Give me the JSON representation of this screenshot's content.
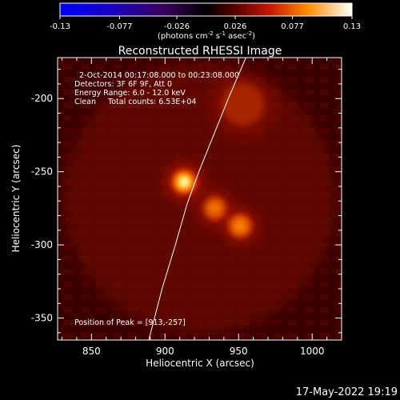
{
  "colorbar": {
    "tick_labels": [
      "-0.13",
      "-0.077",
      "-0.026",
      "0.026",
      "0.077",
      "0.13"
    ],
    "tick_values": [
      -0.13,
      -0.077,
      -0.026,
      0.026,
      0.077,
      0.13
    ],
    "range": [
      -0.13,
      0.13
    ],
    "unit_label_main": "(photons cm",
    "unit_sup1": "-2",
    "unit_mid1": " s",
    "unit_sup2": "-1",
    "unit_mid2": " asec",
    "unit_sup3": "-2",
    "unit_end": ")"
  },
  "chart_data": {
    "type": "heatmap",
    "title": "Reconstructed RHESSI Image",
    "xlabel": "Heliocentric X (arcsec)",
    "ylabel": "Heliocentric Y (arcsec)",
    "xlim": [
      827,
      1020
    ],
    "ylim": [
      -365,
      -172
    ],
    "xticks": [
      850,
      900,
      950,
      1000
    ],
    "yticks": [
      -200,
      -250,
      -300,
      -350
    ],
    "xtick_labels": [
      "850",
      "900",
      "950",
      "1000"
    ],
    "ytick_labels": [
      "-200",
      "-250",
      "-300",
      "-350"
    ],
    "colormap": "hot",
    "sources": [
      {
        "x": 913,
        "y": -257,
        "intensity": 1.0,
        "sigma": 5
      },
      {
        "x": 934,
        "y": -275,
        "intensity": 0.55,
        "sigma": 5
      },
      {
        "x": 951,
        "y": -287,
        "intensity": 0.62,
        "sigma": 5
      },
      {
        "x": 953,
        "y": -204,
        "intensity": 0.28,
        "sigma": 9
      }
    ],
    "limb_curve": [
      [
        889,
        -365
      ],
      [
        898,
        -330
      ],
      [
        907,
        -300
      ],
      [
        915,
        -272
      ],
      [
        923,
        -250
      ],
      [
        933,
        -225
      ],
      [
        943,
        -200
      ],
      [
        955,
        -172
      ]
    ],
    "info_lines": [
      "2-Oct-2014 00:17:08.000 to 00:23:08.000",
      "Detectors: 3F 6F 9F, Att 0",
      "Energy Range: 6.0 - 12.0 keV",
      "Clean     Total counts: 6.53E+04"
    ],
    "peak_label": "Position of Peak = [913,-257]"
  },
  "footer": {
    "timestamp": "17-May-2022 19:19"
  }
}
